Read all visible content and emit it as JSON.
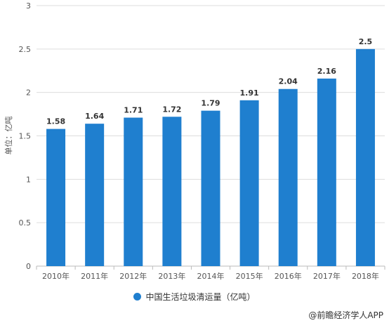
{
  "chart_data": {
    "type": "bar",
    "categories": [
      "2010年",
      "2011年",
      "2012年",
      "2013年",
      "2014年",
      "2015年",
      "2016年",
      "2017年",
      "2018年"
    ],
    "series": [
      {
        "name": "中国生活垃圾清运量（亿吨）",
        "values": [
          1.58,
          1.64,
          1.71,
          1.72,
          1.79,
          1.91,
          2.04,
          2.16,
          2.5
        ]
      }
    ],
    "data_labels": [
      "1.58",
      "1.64",
      "1.71",
      "1.72",
      "1.79",
      "1.91",
      "2.04",
      "2.16",
      "2.5"
    ],
    "ylabel": "单位：亿吨",
    "ylim": [
      0,
      3
    ],
    "yticks": [
      0,
      0.5,
      1,
      1.5,
      2,
      2.5,
      3
    ],
    "ytick_labels": [
      "0",
      "0.5",
      "1",
      "1.5",
      "2",
      "2.5",
      "3"
    ],
    "grid": true,
    "legend_position": "bottom",
    "bar_color": "#1f7fcf"
  },
  "credit": "@前瞻经济学人APP"
}
